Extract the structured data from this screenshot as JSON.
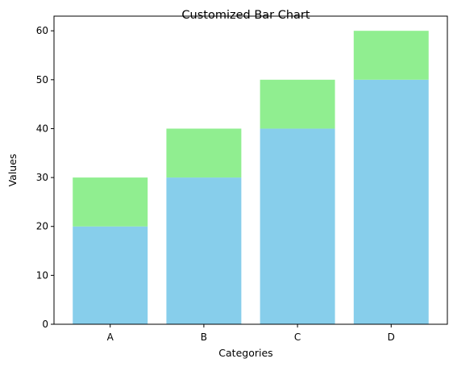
{
  "chart_data": {
    "type": "bar",
    "title": "Customized Bar Chart",
    "xlabel": "Categories",
    "ylabel": "Values",
    "categories": [
      "A",
      "B",
      "C",
      "D"
    ],
    "series": [
      {
        "values": [
          20,
          30,
          40,
          50
        ],
        "color": "#87ceeb"
      },
      {
        "values": [
          10,
          10,
          10,
          10
        ],
        "color": "#90ee90"
      }
    ],
    "stacked": true,
    "ylim": [
      0,
      63
    ],
    "yticks": [
      0,
      10,
      20,
      30,
      40,
      50,
      60
    ],
    "grid": false
  }
}
